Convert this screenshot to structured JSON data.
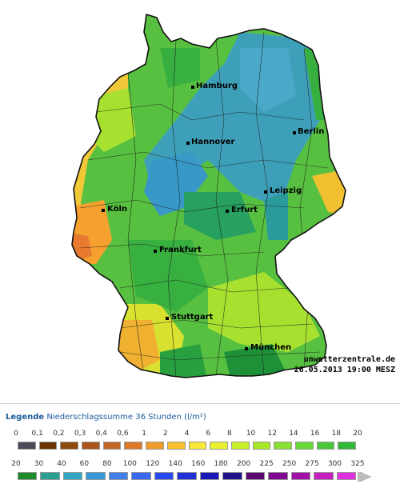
{
  "credit": {
    "site": "unwetterzentrale.de",
    "timestamp": "26.05.2013 19:00 MESZ"
  },
  "cities": [
    {
      "name": "Hamburg",
      "key": "hamburg"
    },
    {
      "name": "Berlin",
      "key": "berlin"
    },
    {
      "name": "Hannover",
      "key": "hannover"
    },
    {
      "name": "Leipzig",
      "key": "leipzig"
    },
    {
      "name": "Köln",
      "key": "koeln"
    },
    {
      "name": "Erfurt",
      "key": "erfurt"
    },
    {
      "name": "Frankfurt",
      "key": "frankfurt"
    },
    {
      "name": "Stuttgart",
      "key": "stuttgart"
    },
    {
      "name": "München",
      "key": "muenchen"
    }
  ],
  "legend": {
    "heading": "Legende",
    "subtitle": "Niederschlagssumme 36 Stunden  (l/m²)",
    "row1_labels": [
      "0",
      "0,1",
      "0,2",
      "0,3",
      "0,4",
      "0,6",
      "1",
      "2",
      "4",
      "6",
      "8",
      "10",
      "12",
      "14",
      "16",
      "18",
      "20"
    ],
    "row1_colors": [
      "#4a4a5a",
      "#6b3300",
      "#8c4a0c",
      "#a8561a",
      "#c0682a",
      "#dc7a2a",
      "#f09a28",
      "#f6c030",
      "#f8e838",
      "#e8f030",
      "#c8f028",
      "#a8e828",
      "#88e030",
      "#68d838",
      "#48c838",
      "#30b838"
    ],
    "row2_labels": [
      "20",
      "30",
      "40",
      "60",
      "80",
      "100",
      "120",
      "140",
      "160",
      "180",
      "200",
      "225",
      "250",
      "275",
      "300",
      "325"
    ],
    "row2_colors": [
      "#1e8a28",
      "#28a090",
      "#30a8c0",
      "#3898d8",
      "#4080e8",
      "#3868f0",
      "#2848f0",
      "#2030d8",
      "#1818b8",
      "#20108a",
      "#5a0870",
      "#800890",
      "#a010a8",
      "#c820c0",
      "#e030e0"
    ]
  }
}
